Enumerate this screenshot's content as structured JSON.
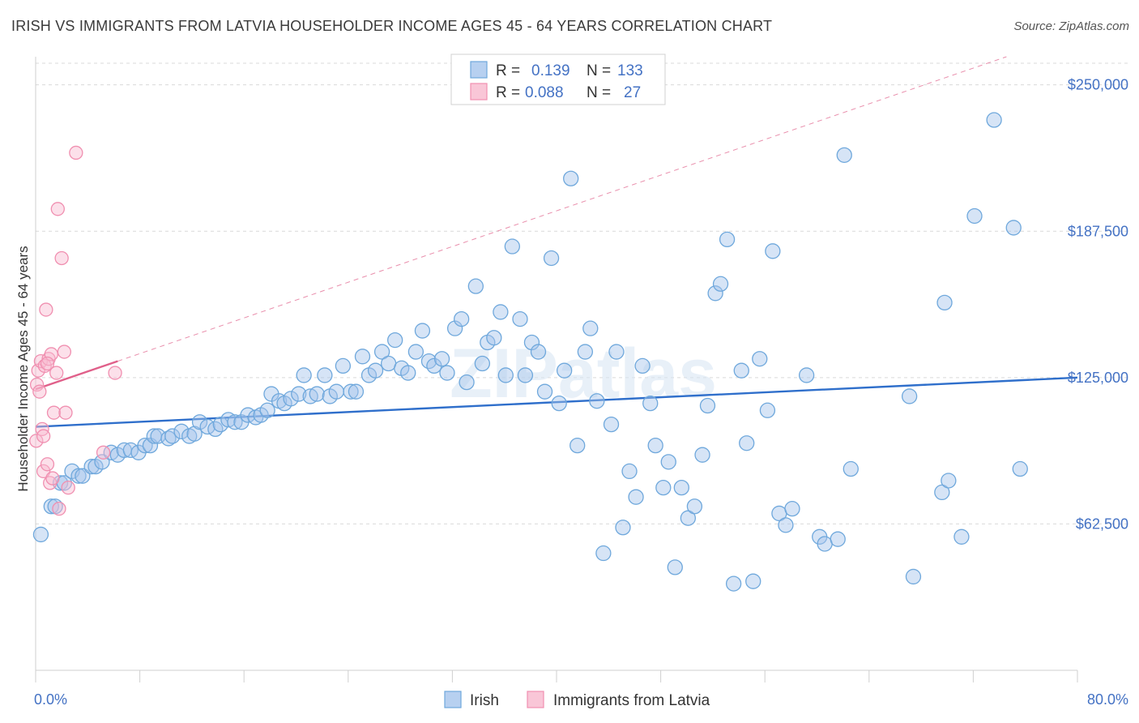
{
  "title": "IRISH VS IMMIGRANTS FROM LATVIA HOUSEHOLDER INCOME AGES 45 - 64 YEARS CORRELATION CHART",
  "source": "Source: ZipAtlas.com",
  "watermark": "ZIPatlas",
  "colors": {
    "irish": "#6fa8dc",
    "irish_fill": "rgba(164,196,236,0.45)",
    "irish_line": "#2f6fcb",
    "latvia": "#f08fb0",
    "latvia_fill": "rgba(248,186,208,0.45)",
    "latvia_line": "#e0608a",
    "tick": "#4472c4",
    "grid": "#d9d9d9"
  },
  "legend": {
    "rows": [
      {
        "r_label": "R =",
        "r_value": "0.139",
        "n_label": "N =",
        "n_value": "133"
      },
      {
        "r_label": "R =",
        "r_value": "0.088",
        "n_label": "N =",
        "n_value": "27"
      }
    ]
  },
  "chart_data": {
    "type": "scatter",
    "xlabel": "",
    "ylabel": "Householder Income Ages 45 - 64 years",
    "xlim": [
      0,
      80
    ],
    "ylim": [
      0,
      262000
    ],
    "x_tick_labels": [
      "0.0%",
      "80.0%"
    ],
    "y_ticks": [
      62500,
      125000,
      187500,
      250000
    ],
    "y_tick_labels": [
      "$62,500",
      "$125,000",
      "$187,500",
      "$250,000"
    ],
    "grid": true,
    "legend_position": "top-center",
    "series": [
      {
        "name": "Irish",
        "r": 0.139,
        "n": 133,
        "trend": {
          "x": [
            0,
            80
          ],
          "y": [
            104000,
            125000
          ]
        },
        "points": [
          [
            0.4,
            58000
          ],
          [
            1.2,
            70000
          ],
          [
            1.5,
            70000
          ],
          [
            1.9,
            80000
          ],
          [
            2.2,
            80000
          ],
          [
            2.8,
            85000
          ],
          [
            3.3,
            83000
          ],
          [
            3.6,
            83000
          ],
          [
            4.3,
            87000
          ],
          [
            4.6,
            87000
          ],
          [
            5.1,
            89000
          ],
          [
            5.8,
            93000
          ],
          [
            6.3,
            92000
          ],
          [
            6.8,
            94000
          ],
          [
            7.3,
            94000
          ],
          [
            7.9,
            93000
          ],
          [
            8.4,
            96000
          ],
          [
            8.8,
            96000
          ],
          [
            9.1,
            100000
          ],
          [
            9.4,
            100000
          ],
          [
            10.2,
            99000
          ],
          [
            10.5,
            100000
          ],
          [
            11.2,
            102000
          ],
          [
            11.8,
            100000
          ],
          [
            12.2,
            101000
          ],
          [
            12.6,
            106000
          ],
          [
            13.2,
            104000
          ],
          [
            13.8,
            103000
          ],
          [
            14.2,
            105000
          ],
          [
            14.8,
            107000
          ],
          [
            15.3,
            106000
          ],
          [
            15.8,
            106000
          ],
          [
            16.3,
            109000
          ],
          [
            16.9,
            108000
          ],
          [
            17.3,
            109000
          ],
          [
            17.8,
            111000
          ],
          [
            18.1,
            118000
          ],
          [
            18.7,
            115000
          ],
          [
            19.1,
            114000
          ],
          [
            19.6,
            116000
          ],
          [
            20.2,
            118000
          ],
          [
            20.6,
            126000
          ],
          [
            21.1,
            117000
          ],
          [
            21.6,
            118000
          ],
          [
            22.2,
            126000
          ],
          [
            22.6,
            117000
          ],
          [
            23.1,
            119000
          ],
          [
            23.6,
            130000
          ],
          [
            24.2,
            119000
          ],
          [
            24.6,
            119000
          ],
          [
            25.1,
            134000
          ],
          [
            25.6,
            126000
          ],
          [
            26.1,
            128000
          ],
          [
            26.6,
            136000
          ],
          [
            27.1,
            131000
          ],
          [
            27.6,
            141000
          ],
          [
            28.1,
            129000
          ],
          [
            28.6,
            127000
          ],
          [
            29.2,
            136000
          ],
          [
            29.7,
            145000
          ],
          [
            30.2,
            132000
          ],
          [
            30.6,
            130000
          ],
          [
            31.2,
            133000
          ],
          [
            31.6,
            127000
          ],
          [
            32.2,
            146000
          ],
          [
            32.7,
            150000
          ],
          [
            33.1,
            123000
          ],
          [
            33.8,
            164000
          ],
          [
            34.3,
            131000
          ],
          [
            34.7,
            140000
          ],
          [
            35.2,
            142000
          ],
          [
            35.7,
            153000
          ],
          [
            36.1,
            126000
          ],
          [
            36.6,
            181000
          ],
          [
            37.2,
            150000
          ],
          [
            37.6,
            126000
          ],
          [
            38.1,
            140000
          ],
          [
            38.6,
            136000
          ],
          [
            39.1,
            119000
          ],
          [
            39.6,
            176000
          ],
          [
            40.2,
            114000
          ],
          [
            40.6,
            128000
          ],
          [
            41.1,
            210000
          ],
          [
            41.6,
            96000
          ],
          [
            42.2,
            136000
          ],
          [
            42.6,
            146000
          ],
          [
            43.1,
            115000
          ],
          [
            43.6,
            50000
          ],
          [
            44.2,
            105000
          ],
          [
            44.6,
            136000
          ],
          [
            45.1,
            61000
          ],
          [
            45.6,
            85000
          ],
          [
            46.1,
            74000
          ],
          [
            46.6,
            130000
          ],
          [
            47.2,
            114000
          ],
          [
            47.6,
            96000
          ],
          [
            48.2,
            78000
          ],
          [
            48.6,
            89000
          ],
          [
            49.1,
            44000
          ],
          [
            49.6,
            78000
          ],
          [
            50.1,
            65000
          ],
          [
            50.6,
            70000
          ],
          [
            51.2,
            92000
          ],
          [
            51.6,
            113000
          ],
          [
            52.2,
            161000
          ],
          [
            52.6,
            165000
          ],
          [
            53.1,
            184000
          ],
          [
            53.6,
            37000
          ],
          [
            54.2,
            128000
          ],
          [
            54.6,
            97000
          ],
          [
            55.1,
            38000
          ],
          [
            55.6,
            133000
          ],
          [
            56.2,
            111000
          ],
          [
            56.6,
            179000
          ],
          [
            57.1,
            67000
          ],
          [
            57.6,
            62000
          ],
          [
            58.1,
            69000
          ],
          [
            59.2,
            126000
          ],
          [
            60.2,
            57000
          ],
          [
            60.6,
            54000
          ],
          [
            61.6,
            56000
          ],
          [
            62.1,
            220000
          ],
          [
            62.6,
            86000
          ],
          [
            67.1,
            117000
          ],
          [
            67.4,
            40000
          ],
          [
            69.6,
            76000
          ],
          [
            69.8,
            157000
          ],
          [
            70.1,
            81000
          ],
          [
            71.1,
            57000
          ],
          [
            72.1,
            194000
          ],
          [
            73.6,
            235000
          ],
          [
            75.1,
            189000
          ],
          [
            75.6,
            86000
          ]
        ]
      },
      {
        "name": "Immigrants from Latvia",
        "r": 0.088,
        "n": 27,
        "trend": {
          "x": [
            0,
            6.3
          ],
          "y": [
            120000,
            132000
          ]
        },
        "points": [
          [
            0.05,
            98000
          ],
          [
            0.1,
            122000
          ],
          [
            0.2,
            128000
          ],
          [
            0.3,
            119000
          ],
          [
            0.4,
            132000
          ],
          [
            0.5,
            103000
          ],
          [
            0.6,
            85000
          ],
          [
            0.7,
            130000
          ],
          [
            0.8,
            154000
          ],
          [
            0.9,
            88000
          ],
          [
            1.0,
            133000
          ],
          [
            1.1,
            80000
          ],
          [
            1.2,
            135000
          ],
          [
            1.4,
            110000
          ],
          [
            1.6,
            127000
          ],
          [
            1.7,
            197000
          ],
          [
            1.8,
            69000
          ],
          [
            2.0,
            176000
          ],
          [
            2.2,
            136000
          ],
          [
            2.3,
            110000
          ],
          [
            2.5,
            78000
          ],
          [
            3.1,
            221000
          ],
          [
            5.2,
            93000
          ],
          [
            6.1,
            127000
          ],
          [
            1.3,
            82000
          ],
          [
            0.9,
            131000
          ],
          [
            0.6,
            100000
          ]
        ]
      }
    ]
  }
}
